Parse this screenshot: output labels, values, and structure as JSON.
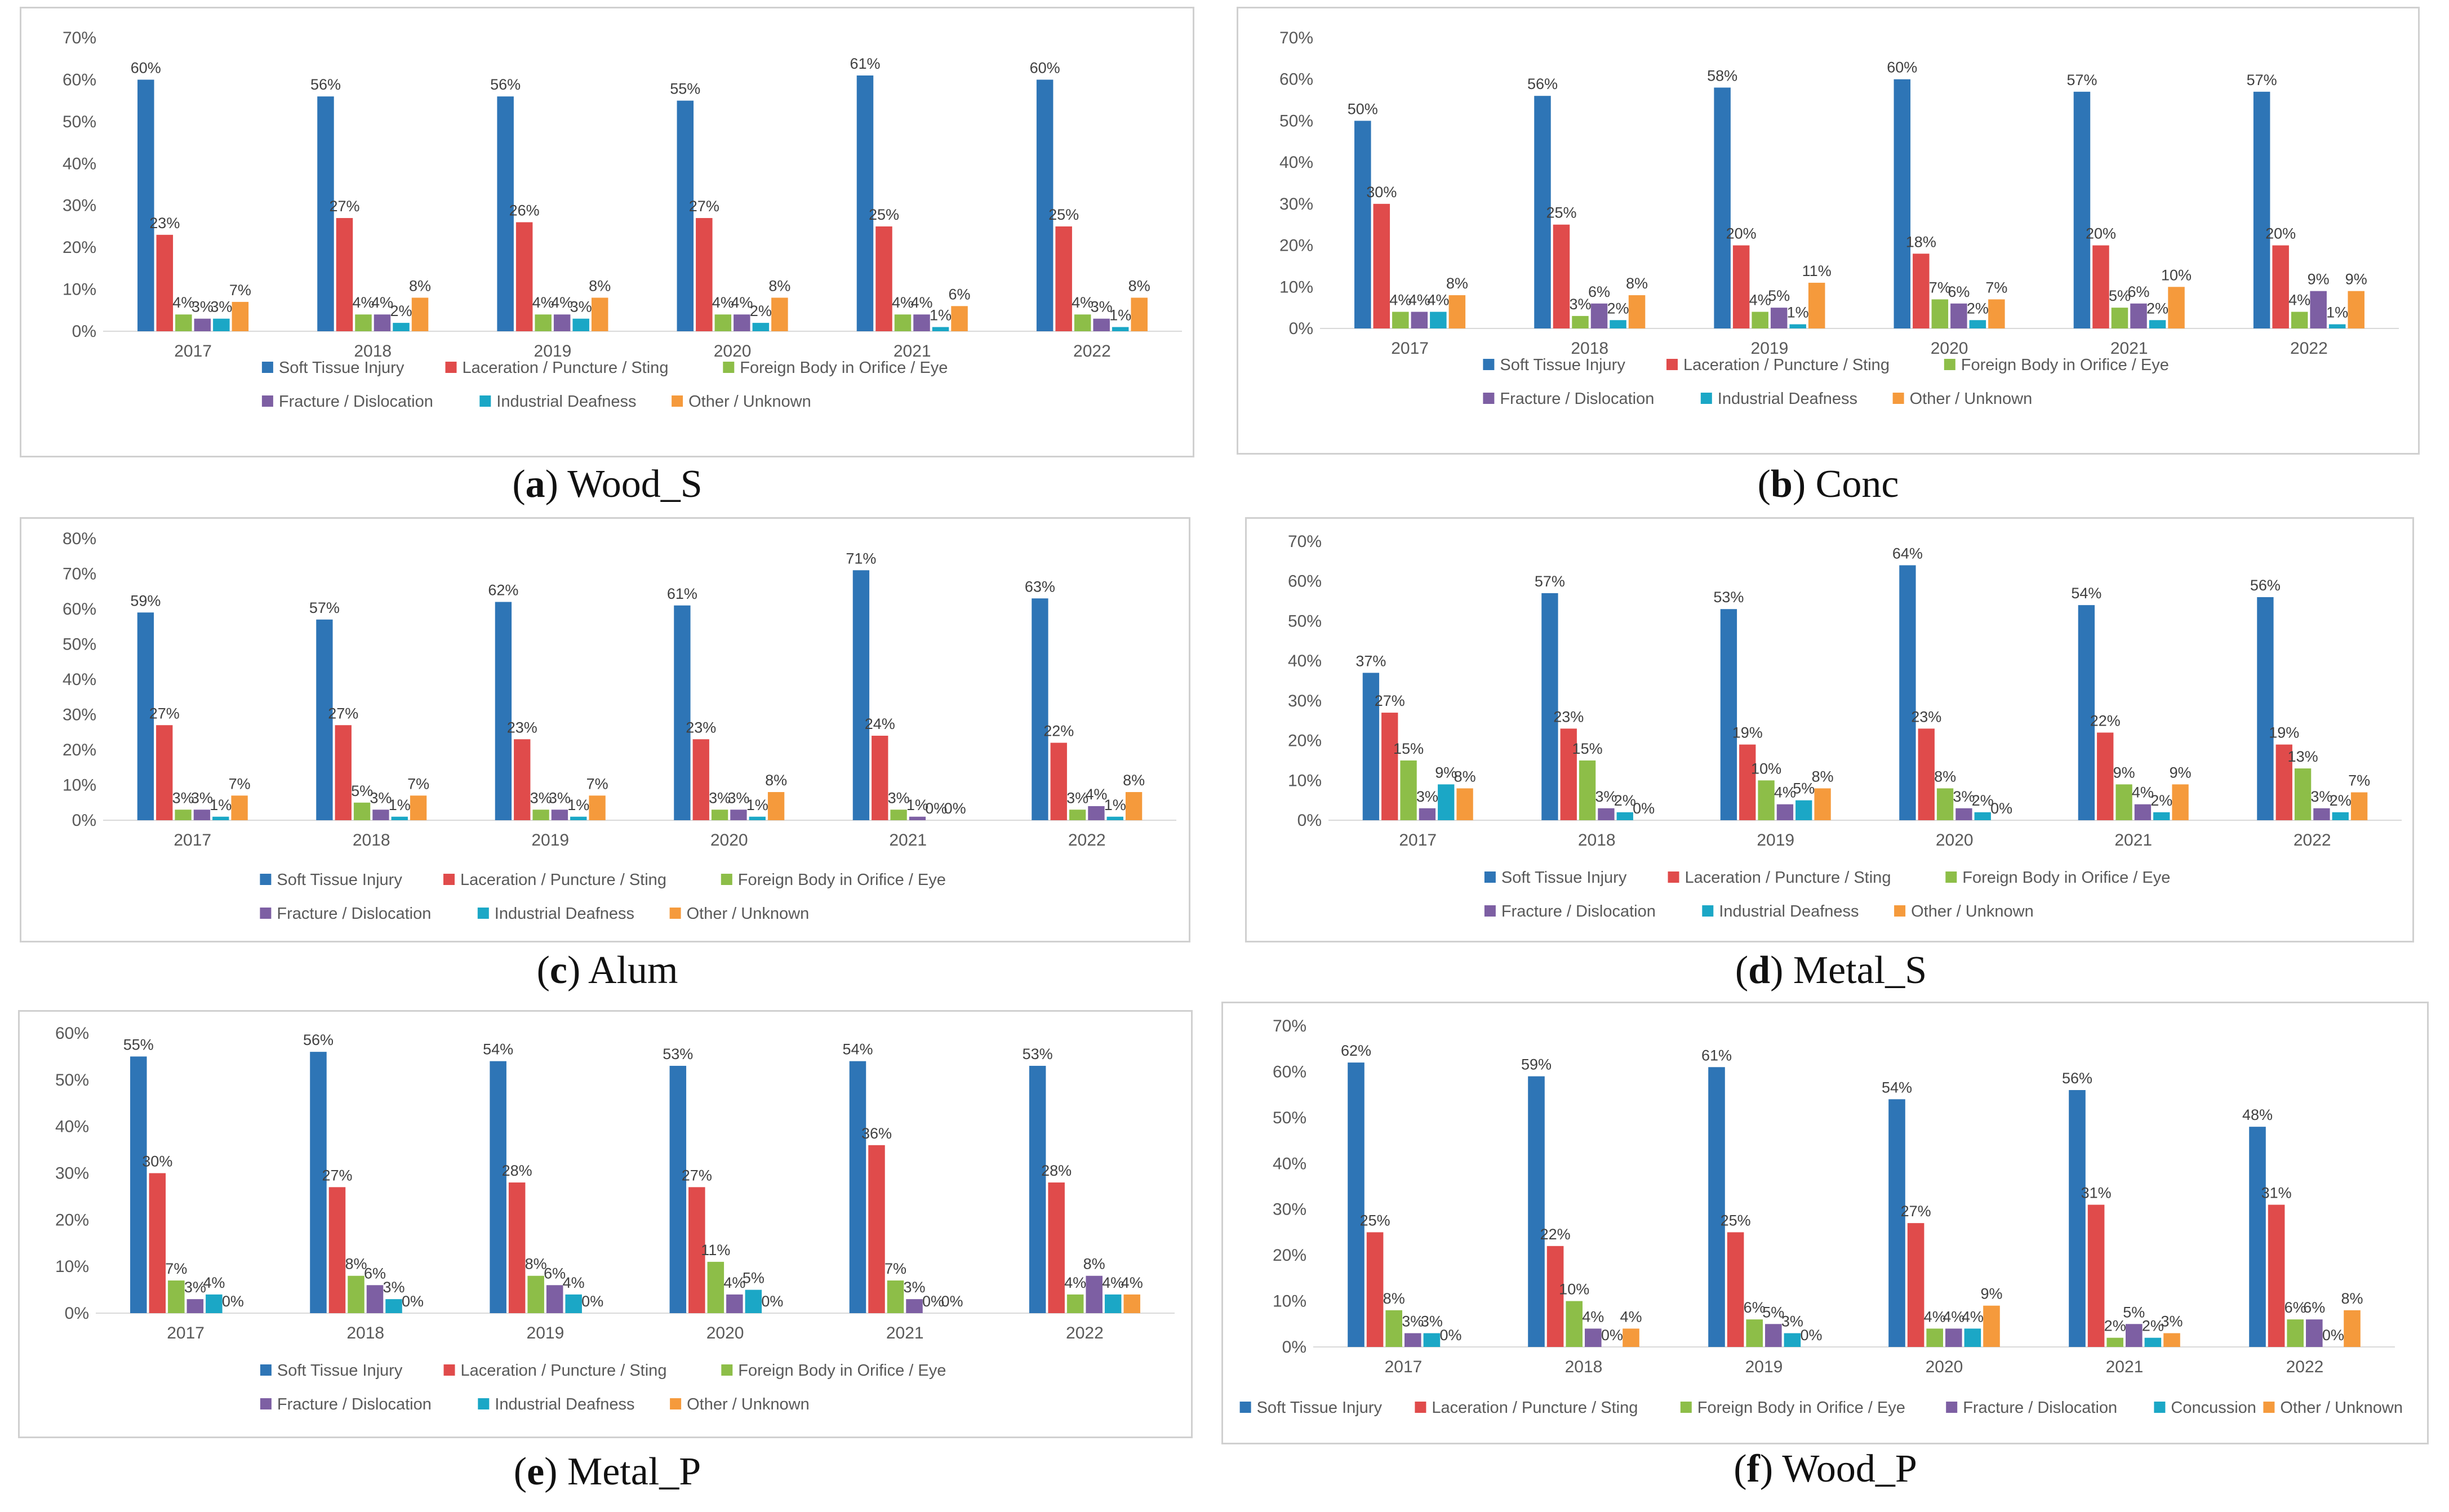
{
  "chart_data": [
    {
      "type": "bar",
      "caption_letter": "a",
      "caption_text": "Wood_S",
      "categories": [
        "2017",
        "2018",
        "2019",
        "2020",
        "2021",
        "2022"
      ],
      "ylim": [
        0,
        70
      ],
      "yticks": [
        "0%",
        "10%",
        "20%",
        "30%",
        "40%",
        "50%",
        "60%",
        "70%"
      ],
      "series": [
        {
          "name": "Soft Tissue Injury",
          "color": "#2E75B6",
          "values": [
            60,
            56,
            56,
            55,
            61,
            60
          ],
          "labels": [
            "60%",
            "56%",
            "56%",
            "55%",
            "61%",
            "60%"
          ]
        },
        {
          "name": "Laceration / Puncture / Sting",
          "color": "#E04B4B",
          "values": [
            23,
            27,
            26,
            27,
            25,
            25
          ],
          "labels": [
            "23%",
            "27%",
            "26%",
            "27%",
            "25%",
            "25%"
          ]
        },
        {
          "name": "Foreign Body in Orifice / Eye",
          "color": "#8DBE48",
          "values": [
            4,
            4,
            4,
            4,
            4,
            4
          ],
          "labels": [
            "4%",
            "4%",
            "4%",
            "4%",
            "4%",
            "4%"
          ]
        },
        {
          "name": "Fracture / Dislocation",
          "color": "#7D5FA3",
          "values": [
            3,
            4,
            4,
            4,
            4,
            3
          ],
          "labels": [
            "3%",
            "4%",
            "4%",
            "4%",
            "4%",
            "3%"
          ]
        },
        {
          "name": "Industrial Deafness",
          "color": "#1BA7C6",
          "values": [
            3,
            2,
            3,
            2,
            1,
            1
          ],
          "labels": [
            "3%",
            "2%",
            "3%",
            "2%",
            "1%",
            "1%"
          ]
        },
        {
          "name": "Other / Unknown",
          "color": "#F59A3C",
          "values": [
            7,
            8,
            8,
            8,
            6,
            8
          ],
          "labels": [
            "7%",
            "8%",
            "8%",
            "8%",
            "6%",
            "8%"
          ]
        }
      ]
    },
    {
      "type": "bar",
      "caption_letter": "b",
      "caption_text": "Conc",
      "categories": [
        "2017",
        "2018",
        "2019",
        "2020",
        "2021",
        "2022"
      ],
      "ylim": [
        0,
        70
      ],
      "yticks": [
        "0%",
        "10%",
        "20%",
        "30%",
        "40%",
        "50%",
        "60%",
        "70%"
      ],
      "series": [
        {
          "name": "Soft Tissue Injury",
          "color": "#2E75B6",
          "values": [
            50,
            56,
            58,
            60,
            57,
            57
          ],
          "labels": [
            "50%",
            "56%",
            "58%",
            "60%",
            "57%",
            "57%"
          ]
        },
        {
          "name": "Laceration / Puncture / Sting",
          "color": "#E04B4B",
          "values": [
            30,
            25,
            20,
            18,
            20,
            20
          ],
          "labels": [
            "30%",
            "25%",
            "20%",
            "18%",
            "20%",
            "20%"
          ]
        },
        {
          "name": "Foreign Body in Orifice / Eye",
          "color": "#8DBE48",
          "values": [
            4,
            3,
            4,
            7,
            5,
            4
          ],
          "labels": [
            "4%",
            "3%",
            "4%",
            "7%",
            "5%",
            "4%"
          ]
        },
        {
          "name": "Fracture / Dislocation",
          "color": "#7D5FA3",
          "values": [
            4,
            6,
            5,
            6,
            6,
            9
          ],
          "labels": [
            "4%",
            "6%",
            "5%",
            "6%",
            "6%",
            "9%"
          ]
        },
        {
          "name": "Industrial Deafness",
          "color": "#1BA7C6",
          "values": [
            4,
            2,
            1,
            2,
            2,
            1
          ],
          "labels": [
            "4%",
            "2%",
            "1%",
            "2%",
            "2%",
            "1%"
          ]
        },
        {
          "name": "Other / Unknown",
          "color": "#F59A3C",
          "values": [
            8,
            8,
            11,
            7,
            10,
            9
          ],
          "labels": [
            "8%",
            "8%",
            "11%",
            "7%",
            "10%",
            "9%"
          ]
        }
      ]
    },
    {
      "type": "bar",
      "caption_letter": "c",
      "caption_text": "Alum",
      "categories": [
        "2017",
        "2018",
        "2019",
        "2020",
        "2021",
        "2022"
      ],
      "ylim": [
        0,
        80
      ],
      "yticks": [
        "0%",
        "10%",
        "20%",
        "30%",
        "40%",
        "50%",
        "60%",
        "70%",
        "80%"
      ],
      "series": [
        {
          "name": "Soft Tissue Injury",
          "color": "#2E75B6",
          "values": [
            59,
            57,
            62,
            61,
            71,
            63
          ],
          "labels": [
            "59%",
            "57%",
            "62%",
            "61%",
            "71%",
            "63%"
          ]
        },
        {
          "name": "Laceration / Puncture / Sting",
          "color": "#E04B4B",
          "values": [
            27,
            27,
            23,
            23,
            24,
            22
          ],
          "labels": [
            "27%",
            "27%",
            "23%",
            "23%",
            "24%",
            "22%"
          ]
        },
        {
          "name": "Foreign Body in Orifice / Eye",
          "color": "#8DBE48",
          "values": [
            3,
            5,
            3,
            3,
            3,
            3
          ],
          "labels": [
            "3%",
            "5%",
            "3%",
            "3%",
            "3%",
            "3%"
          ]
        },
        {
          "name": "Fracture / Dislocation",
          "color": "#7D5FA3",
          "values": [
            3,
            3,
            3,
            3,
            1,
            4
          ],
          "labels": [
            "3%",
            "3%",
            "3%",
            "3%",
            "1%",
            "4%"
          ]
        },
        {
          "name": "Industrial Deafness",
          "color": "#1BA7C6",
          "values": [
            1,
            1,
            1,
            1,
            0,
            1
          ],
          "labels": [
            "1%",
            "1%",
            "1%",
            "1%",
            "0%",
            "1%"
          ]
        },
        {
          "name": "Other / Unknown",
          "color": "#F59A3C",
          "values": [
            7,
            7,
            7,
            8,
            0,
            8
          ],
          "labels": [
            "7%",
            "7%",
            "7%",
            "8%",
            "0%",
            "8%"
          ]
        }
      ]
    },
    {
      "type": "bar",
      "caption_letter": "d",
      "caption_text": "Metal_S",
      "categories": [
        "2017",
        "2018",
        "2019",
        "2020",
        "2021",
        "2022"
      ],
      "ylim": [
        0,
        70
      ],
      "yticks": [
        "0%",
        "10%",
        "20%",
        "30%",
        "40%",
        "50%",
        "60%",
        "70%"
      ],
      "series": [
        {
          "name": "Soft Tissue Injury",
          "color": "#2E75B6",
          "values": [
            37,
            57,
            53,
            64,
            54,
            56
          ],
          "labels": [
            "37%",
            "57%",
            "53%",
            "64%",
            "54%",
            "56%"
          ]
        },
        {
          "name": "Laceration / Puncture / Sting",
          "color": "#E04B4B",
          "values": [
            27,
            23,
            19,
            23,
            22,
            19
          ],
          "labels": [
            "27%",
            "23%",
            "19%",
            "23%",
            "22%",
            "19%"
          ]
        },
        {
          "name": "Foreign Body in Orifice / Eye",
          "color": "#8DBE48",
          "values": [
            15,
            15,
            10,
            8,
            9,
            13
          ],
          "labels": [
            "15%",
            "15%",
            "10%",
            "8%",
            "9%",
            "13%"
          ]
        },
        {
          "name": "Fracture / Dislocation",
          "color": "#7D5FA3",
          "values": [
            3,
            3,
            4,
            3,
            4,
            3
          ],
          "labels": [
            "3%",
            "3%",
            "4%",
            "3%",
            "4%",
            "3%"
          ]
        },
        {
          "name": "Industrial Deafness",
          "color": "#1BA7C6",
          "values": [
            9,
            2,
            5,
            2,
            2,
            2
          ],
          "labels": [
            "9%",
            "2%",
            "5%",
            "2%",
            "2%",
            "2%"
          ]
        },
        {
          "name": "Other / Unknown",
          "color": "#F59A3C",
          "values": [
            8,
            0,
            8,
            0,
            9,
            7
          ],
          "labels": [
            "8%",
            "0%",
            "8%",
            "0%",
            "9%",
            "7%"
          ]
        }
      ]
    },
    {
      "type": "bar",
      "caption_letter": "e",
      "caption_text": "Metal_P",
      "categories": [
        "2017",
        "2018",
        "2019",
        "2020",
        "2021",
        "2022"
      ],
      "ylim": [
        0,
        60
      ],
      "yticks": [
        "0%",
        "10%",
        "20%",
        "30%",
        "40%",
        "50%",
        "60%"
      ],
      "series": [
        {
          "name": "Soft Tissue Injury",
          "color": "#2E75B6",
          "values": [
            55,
            56,
            54,
            53,
            54,
            53
          ],
          "labels": [
            "55%",
            "56%",
            "54%",
            "53%",
            "54%",
            "53%"
          ]
        },
        {
          "name": "Laceration / Puncture / Sting",
          "color": "#E04B4B",
          "values": [
            30,
            27,
            28,
            27,
            36,
            28
          ],
          "labels": [
            "30%",
            "27%",
            "28%",
            "27%",
            "36%",
            "28%"
          ]
        },
        {
          "name": "Foreign Body in Orifice / Eye",
          "color": "#8DBE48",
          "values": [
            7,
            8,
            8,
            11,
            7,
            4
          ],
          "labels": [
            "7%",
            "8%",
            "8%",
            "11%",
            "7%",
            "4%"
          ]
        },
        {
          "name": "Fracture / Dislocation",
          "color": "#7D5FA3",
          "values": [
            3,
            6,
            6,
            4,
            3,
            8
          ],
          "labels": [
            "3%",
            "6%",
            "6%",
            "4%",
            "3%",
            "8%"
          ]
        },
        {
          "name": "Industrial Deafness",
          "color": "#1BA7C6",
          "values": [
            4,
            3,
            4,
            5,
            0,
            4
          ],
          "labels": [
            "4%",
            "3%",
            "4%",
            "5%",
            "0%",
            "4%"
          ]
        },
        {
          "name": "Other / Unknown",
          "color": "#F59A3C",
          "values": [
            0,
            0,
            0,
            0,
            0,
            4
          ],
          "labels": [
            "0%",
            "0%",
            "0%",
            "0%",
            "0%",
            "4%"
          ]
        }
      ]
    },
    {
      "type": "bar",
      "caption_letter": "f",
      "caption_text": "Wood_P",
      "categories": [
        "2017",
        "2018",
        "2019",
        "2020",
        "2021",
        "2022"
      ],
      "ylim": [
        0,
        70
      ],
      "yticks": [
        "0%",
        "10%",
        "20%",
        "30%",
        "40%",
        "50%",
        "60%",
        "70%"
      ],
      "series": [
        {
          "name": "Soft Tissue Injury",
          "color": "#2E75B6",
          "values": [
            62,
            59,
            61,
            54,
            56,
            48
          ],
          "labels": [
            "62%",
            "59%",
            "61%",
            "54%",
            "56%",
            "48%"
          ]
        },
        {
          "name": "Laceration / Puncture / Sting",
          "color": "#E04B4B",
          "values": [
            25,
            22,
            25,
            27,
            31,
            31
          ],
          "labels": [
            "25%",
            "22%",
            "25%",
            "27%",
            "31%",
            "31%"
          ]
        },
        {
          "name": "Foreign Body in Orifice / Eye",
          "color": "#8DBE48",
          "values": [
            8,
            10,
            6,
            4,
            2,
            6
          ],
          "labels": [
            "8%",
            "10%",
            "6%",
            "4%",
            "2%",
            "6%"
          ]
        },
        {
          "name": "Fracture / Dislocation",
          "color": "#7D5FA3",
          "values": [
            3,
            4,
            5,
            4,
            5,
            6
          ],
          "labels": [
            "3%",
            "4%",
            "5%",
            "4%",
            "5%",
            "6%"
          ]
        },
        {
          "name": "Concussion",
          "color": "#1BA7C6",
          "values": [
            3,
            0,
            3,
            4,
            2,
            0
          ],
          "labels": [
            "3%",
            "0%",
            "3%",
            "4%",
            "2%",
            "0%"
          ]
        },
        {
          "name": "Other / Unknown",
          "color": "#F59A3C",
          "values": [
            0,
            4,
            0,
            9,
            3,
            8
          ],
          "labels": [
            "0%",
            "4%",
            "0%",
            "9%",
            "3%",
            "8%"
          ]
        }
      ]
    }
  ]
}
